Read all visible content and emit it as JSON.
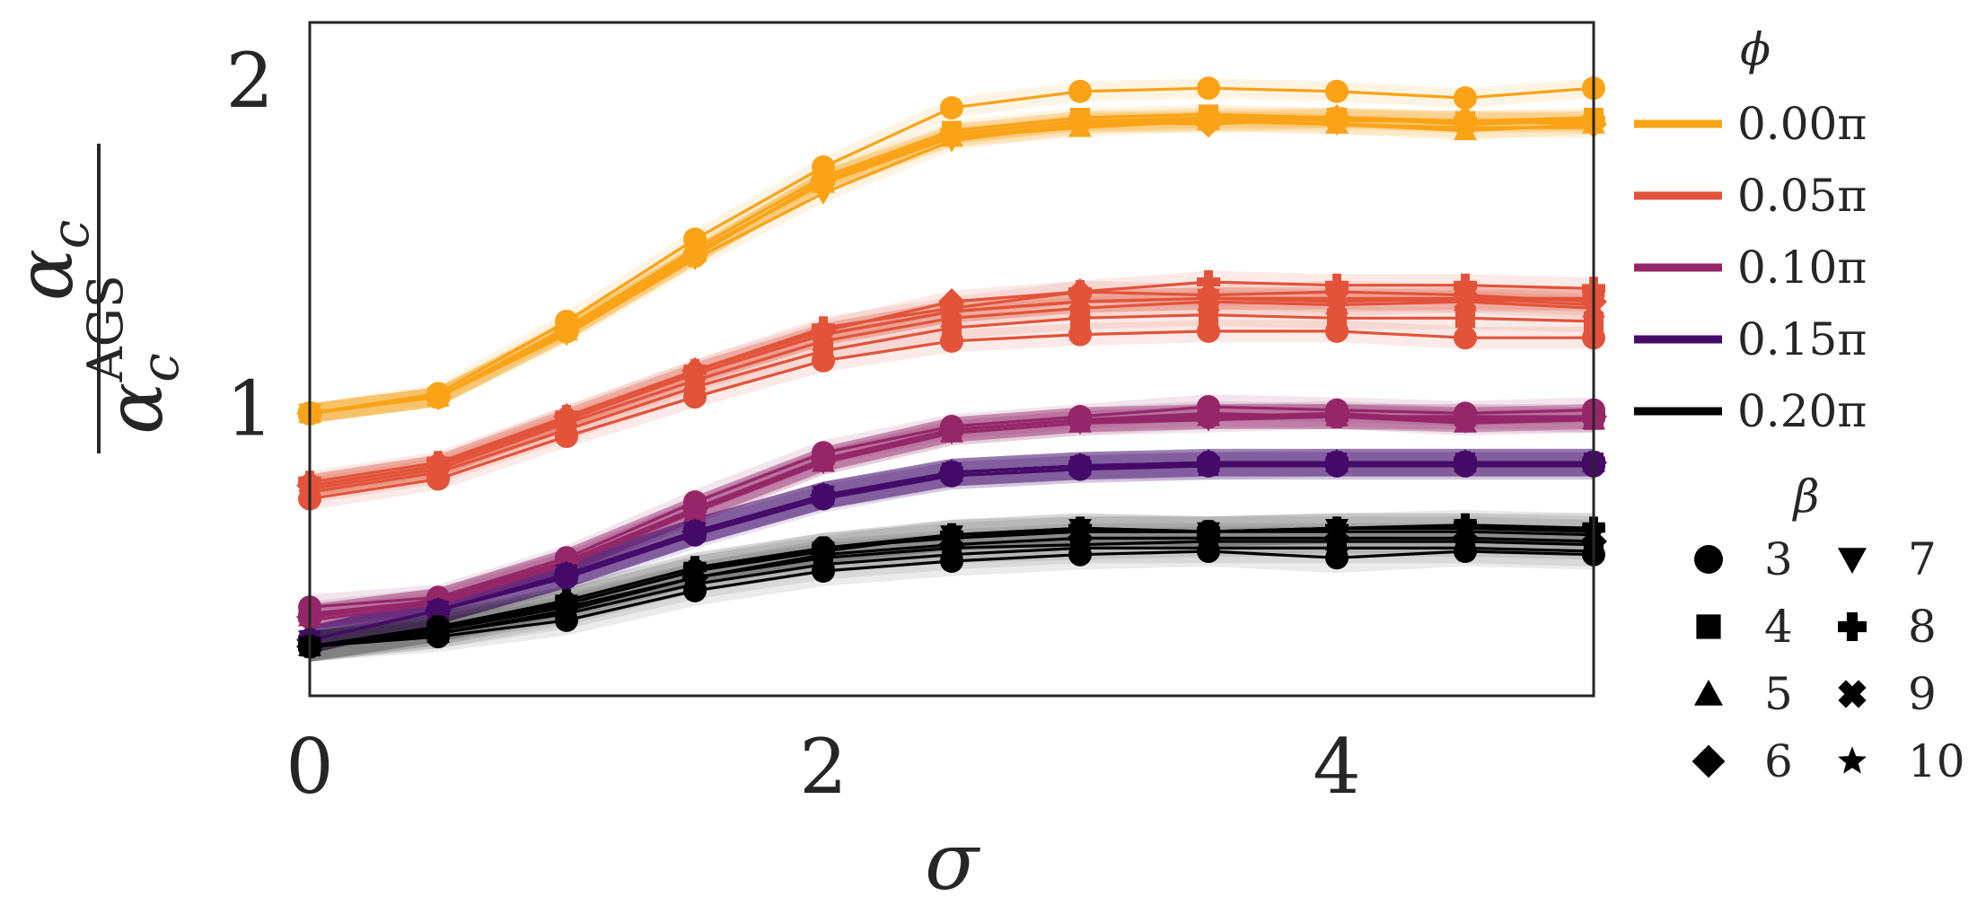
{
  "chart_data": {
    "type": "line",
    "xlabel": "σ",
    "ylabel": {
      "numerator_base": "α",
      "numerator_sub": "c",
      "denominator_base": "α",
      "denominator_sub": "c",
      "denominator_sup": "AGS"
    },
    "xlim": [
      0,
      5
    ],
    "ylim": [
      0.13,
      2.18
    ],
    "xticks": [
      0,
      2,
      4
    ],
    "xtick_labels": [
      "0",
      "2",
      "4"
    ],
    "yticks": [
      1,
      2
    ],
    "ytick_labels": [
      "1",
      "2"
    ],
    "grid": false,
    "x": [
      0,
      0.5,
      1,
      1.5,
      2,
      2.5,
      3,
      3.5,
      4,
      4.5,
      5
    ],
    "legend": {
      "placement": "outside-right",
      "phi_title": "ϕ",
      "phi_entries": [
        {
          "label": "0.00π",
          "color": "#FAA316"
        },
        {
          "label": "0.05π",
          "color": "#E2533A"
        },
        {
          "label": "0.10π",
          "color": "#952769"
        },
        {
          "label": "0.15π",
          "color": "#440A68"
        },
        {
          "label": "0.20π",
          "color": "#000000"
        }
      ],
      "beta_title": "β",
      "beta_entries": [
        {
          "label": "3",
          "marker": "circle"
        },
        {
          "label": "4",
          "marker": "square"
        },
        {
          "label": "5",
          "marker": "triangle-up"
        },
        {
          "label": "6",
          "marker": "diamond"
        },
        {
          "label": "7",
          "marker": "triangle-down"
        },
        {
          "label": "8",
          "marker": "plus"
        },
        {
          "label": "9",
          "marker": "x"
        },
        {
          "label": "10",
          "marker": "star"
        }
      ]
    },
    "groups": [
      {
        "phi": "0.00π",
        "color": "#FAA316",
        "series": [
          {
            "beta": "3",
            "marker": "circle",
            "values": [
              0.99,
              1.05,
              1.27,
              1.52,
              1.74,
              1.92,
              1.97,
              1.98,
              1.97,
              1.95,
              1.98
            ]
          },
          {
            "beta": "4",
            "marker": "square",
            "values": [
              0.99,
              1.04,
              1.25,
              1.49,
              1.71,
              1.85,
              1.89,
              1.9,
              1.89,
              1.88,
              1.89
            ]
          },
          {
            "beta": "5",
            "marker": "triangle-up",
            "values": [
              0.99,
              1.04,
              1.24,
              1.48,
              1.69,
              1.83,
              1.86,
              1.88,
              1.87,
              1.85,
              1.87
            ]
          },
          {
            "beta": "6",
            "marker": "diamond",
            "values": [
              0.99,
              1.04,
              1.24,
              1.47,
              1.7,
              1.84,
              1.88,
              1.87,
              1.89,
              1.88,
              1.87
            ]
          },
          {
            "beta": "7",
            "marker": "triangle-down",
            "values": [
              0.99,
              1.04,
              1.23,
              1.46,
              1.66,
              1.82,
              1.87,
              1.88,
              1.87,
              1.86,
              1.86
            ]
          },
          {
            "beta": "8",
            "marker": "plus",
            "values": [
              0.99,
              1.04,
              1.24,
              1.47,
              1.7,
              1.84,
              1.88,
              1.89,
              1.88,
              1.88,
              1.88
            ]
          },
          {
            "beta": "9",
            "marker": "x",
            "values": [
              0.99,
              1.04,
              1.24,
              1.47,
              1.7,
              1.84,
              1.88,
              1.88,
              1.89,
              1.87,
              1.88
            ]
          },
          {
            "beta": "10",
            "marker": "star",
            "values": [
              0.99,
              1.04,
              1.24,
              1.47,
              1.7,
              1.83,
              1.87,
              1.89,
              1.89,
              1.88,
              1.88
            ]
          }
        ]
      },
      {
        "phi": "0.05π",
        "color": "#E2533A",
        "series": [
          {
            "beta": "3",
            "marker": "circle",
            "values": [
              0.73,
              0.79,
              0.92,
              1.04,
              1.15,
              1.21,
              1.23,
              1.24,
              1.24,
              1.22,
              1.22
            ]
          },
          {
            "beta": "4",
            "marker": "square",
            "values": [
              0.75,
              0.81,
              0.94,
              1.07,
              1.18,
              1.25,
              1.28,
              1.29,
              1.28,
              1.28,
              1.27
            ]
          },
          {
            "beta": "5",
            "marker": "triangle-up",
            "values": [
              0.76,
              0.82,
              0.96,
              1.09,
              1.21,
              1.28,
              1.31,
              1.33,
              1.32,
              1.33,
              1.31
            ]
          },
          {
            "beta": "6",
            "marker": "diamond",
            "values": [
              0.77,
              0.83,
              0.98,
              1.12,
              1.24,
              1.33,
              1.36,
              1.35,
              1.36,
              1.35,
              1.33
            ]
          },
          {
            "beta": "7",
            "marker": "triangle-down",
            "values": [
              0.77,
              0.83,
              0.97,
              1.11,
              1.23,
              1.3,
              1.33,
              1.34,
              1.34,
              1.34,
              1.32
            ]
          },
          {
            "beta": "8",
            "marker": "plus",
            "values": [
              0.78,
              0.84,
              0.98,
              1.12,
              1.25,
              1.31,
              1.36,
              1.39,
              1.38,
              1.38,
              1.37
            ]
          },
          {
            "beta": "9",
            "marker": "x",
            "values": [
              0.77,
              0.83,
              0.97,
              1.11,
              1.23,
              1.3,
              1.33,
              1.34,
              1.34,
              1.33,
              1.34
            ]
          },
          {
            "beta": "10",
            "marker": "star",
            "values": [
              0.77,
              0.83,
              0.97,
              1.11,
              1.23,
              1.3,
              1.33,
              1.34,
              1.33,
              1.34,
              1.34
            ]
          }
        ]
      },
      {
        "phi": "0.10π",
        "color": "#952769",
        "series": [
          {
            "beta": "3",
            "marker": "circle",
            "values": [
              0.4,
              0.43,
              0.55,
              0.72,
              0.87,
              0.95,
              0.98,
              1.01,
              1.0,
              0.99,
              1.0
            ]
          },
          {
            "beta": "4",
            "marker": "square",
            "values": [
              0.38,
              0.42,
              0.54,
              0.7,
              0.85,
              0.94,
              0.97,
              0.99,
              0.98,
              0.98,
              0.97
            ]
          },
          {
            "beta": "5",
            "marker": "triangle-up",
            "values": [
              0.37,
              0.42,
              0.53,
              0.69,
              0.84,
              0.93,
              0.96,
              0.98,
              0.98,
              0.96,
              0.97
            ]
          },
          {
            "beta": "6",
            "marker": "diamond",
            "values": [
              0.37,
              0.42,
              0.54,
              0.7,
              0.85,
              0.94,
              0.97,
              0.98,
              0.99,
              0.97,
              0.98
            ]
          },
          {
            "beta": "7",
            "marker": "triangle-down",
            "values": [
              0.36,
              0.41,
              0.53,
              0.69,
              0.84,
              0.93,
              0.96,
              0.97,
              0.98,
              0.97,
              0.97
            ]
          },
          {
            "beta": "8",
            "marker": "plus",
            "values": [
              0.37,
              0.42,
              0.54,
              0.7,
              0.85,
              0.94,
              0.97,
              0.98,
              0.98,
              0.98,
              0.98
            ]
          },
          {
            "beta": "9",
            "marker": "x",
            "values": [
              0.37,
              0.42,
              0.54,
              0.7,
              0.85,
              0.94,
              0.97,
              0.98,
              0.98,
              0.97,
              0.98
            ]
          },
          {
            "beta": "10",
            "marker": "star",
            "values": [
              0.37,
              0.42,
              0.54,
              0.7,
              0.85,
              0.94,
              0.97,
              0.98,
              0.98,
              0.97,
              0.98
            ]
          }
        ]
      },
      {
        "phi": "0.15π",
        "color": "#440A68",
        "series": [
          {
            "beta": "3",
            "marker": "circle",
            "values": [
              0.3,
              0.39,
              0.49,
              0.62,
              0.73,
              0.8,
              0.82,
              0.83,
              0.83,
              0.83,
              0.83
            ]
          },
          {
            "beta": "4",
            "marker": "square",
            "values": [
              0.3,
              0.39,
              0.5,
              0.63,
              0.74,
              0.81,
              0.83,
              0.83,
              0.84,
              0.84,
              0.84
            ]
          },
          {
            "beta": "5",
            "marker": "triangle-up",
            "values": [
              0.3,
              0.39,
              0.5,
              0.63,
              0.74,
              0.81,
              0.83,
              0.84,
              0.84,
              0.84,
              0.84
            ]
          },
          {
            "beta": "6",
            "marker": "diamond",
            "values": [
              0.3,
              0.39,
              0.5,
              0.63,
              0.74,
              0.81,
              0.83,
              0.84,
              0.84,
              0.84,
              0.84
            ]
          },
          {
            "beta": "7",
            "marker": "triangle-down",
            "values": [
              0.3,
              0.39,
              0.5,
              0.63,
              0.74,
              0.8,
              0.82,
              0.83,
              0.83,
              0.83,
              0.83
            ]
          },
          {
            "beta": "8",
            "marker": "plus",
            "values": [
              0.3,
              0.39,
              0.5,
              0.63,
              0.74,
              0.81,
              0.83,
              0.84,
              0.84,
              0.84,
              0.84
            ]
          },
          {
            "beta": "9",
            "marker": "x",
            "values": [
              0.3,
              0.39,
              0.5,
              0.63,
              0.74,
              0.81,
              0.83,
              0.84,
              0.84,
              0.84,
              0.84
            ]
          },
          {
            "beta": "10",
            "marker": "star",
            "values": [
              0.3,
              0.39,
              0.5,
              0.63,
              0.74,
              0.81,
              0.83,
              0.84,
              0.84,
              0.84,
              0.84
            ]
          }
        ]
      },
      {
        "phi": "0.20π",
        "color": "#000000",
        "series": [
          {
            "beta": "3",
            "marker": "circle",
            "values": [
              0.28,
              0.31,
              0.36,
              0.45,
              0.51,
              0.54,
              0.56,
              0.57,
              0.55,
              0.57,
              0.56
            ]
          },
          {
            "beta": "4",
            "marker": "square",
            "values": [
              0.28,
              0.32,
              0.38,
              0.47,
              0.53,
              0.56,
              0.58,
              0.58,
              0.58,
              0.58,
              0.57
            ]
          },
          {
            "beta": "5",
            "marker": "triangle-up",
            "values": [
              0.28,
              0.32,
              0.39,
              0.49,
              0.55,
              0.58,
              0.59,
              0.6,
              0.6,
              0.6,
              0.59
            ]
          },
          {
            "beta": "6",
            "marker": "diamond",
            "values": [
              0.28,
              0.33,
              0.4,
              0.49,
              0.56,
              0.59,
              0.61,
              0.61,
              0.61,
              0.61,
              0.6
            ]
          },
          {
            "beta": "7",
            "marker": "triangle-down",
            "values": [
              0.28,
              0.33,
              0.41,
              0.51,
              0.57,
              0.62,
              0.64,
              0.63,
              0.64,
              0.64,
              0.63
            ]
          },
          {
            "beta": "8",
            "marker": "plus",
            "values": [
              0.28,
              0.34,
              0.42,
              0.52,
              0.58,
              0.62,
              0.64,
              0.63,
              0.64,
              0.65,
              0.64
            ]
          },
          {
            "beta": "9",
            "marker": "x",
            "values": [
              0.28,
              0.34,
              0.41,
              0.51,
              0.58,
              0.61,
              0.63,
              0.63,
              0.63,
              0.63,
              0.62
            ]
          },
          {
            "beta": "10",
            "marker": "star",
            "values": [
              0.28,
              0.34,
              0.42,
              0.52,
              0.58,
              0.62,
              0.63,
              0.63,
              0.64,
              0.64,
              0.64
            ]
          }
        ]
      }
    ]
  }
}
